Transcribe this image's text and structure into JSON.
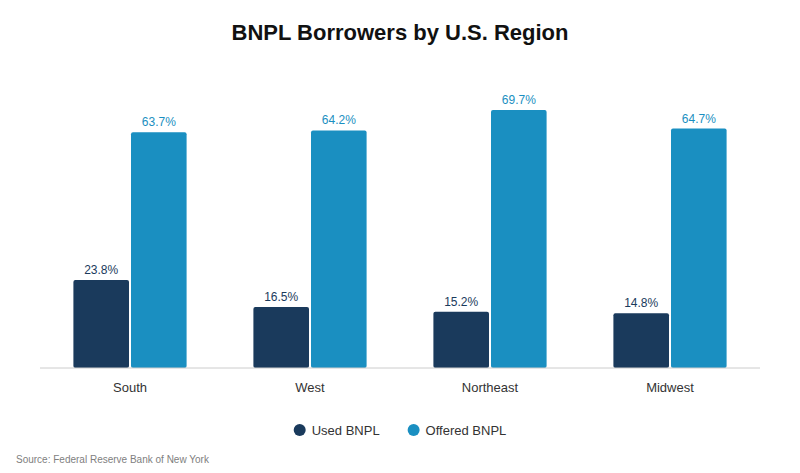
{
  "chart_data": {
    "type": "bar",
    "title": "BNPL Borrowers by U.S. Region",
    "categories": [
      "South",
      "West",
      "Northeast",
      "Midwest"
    ],
    "series": [
      {
        "name": "Used BNPL",
        "color": "#1a3a5c",
        "values": [
          23.8,
          16.5,
          15.2,
          14.8
        ],
        "value_labels": [
          "23.8%",
          "16.5%",
          "15.2%",
          "14.8%"
        ]
      },
      {
        "name": "Offered BNPL",
        "color": "#1a8fc1",
        "values": [
          63.7,
          64.2,
          69.7,
          64.7
        ],
        "value_labels": [
          "63.7%",
          "64.2%",
          "69.7%",
          "64.7%"
        ]
      }
    ],
    "ylim": [
      0,
      80
    ],
    "grid": false,
    "legend": "bottom",
    "data_labels": true,
    "tick_labels": "x",
    "annotations": [
      "Source: Federal Reserve Bank of New York"
    ]
  }
}
